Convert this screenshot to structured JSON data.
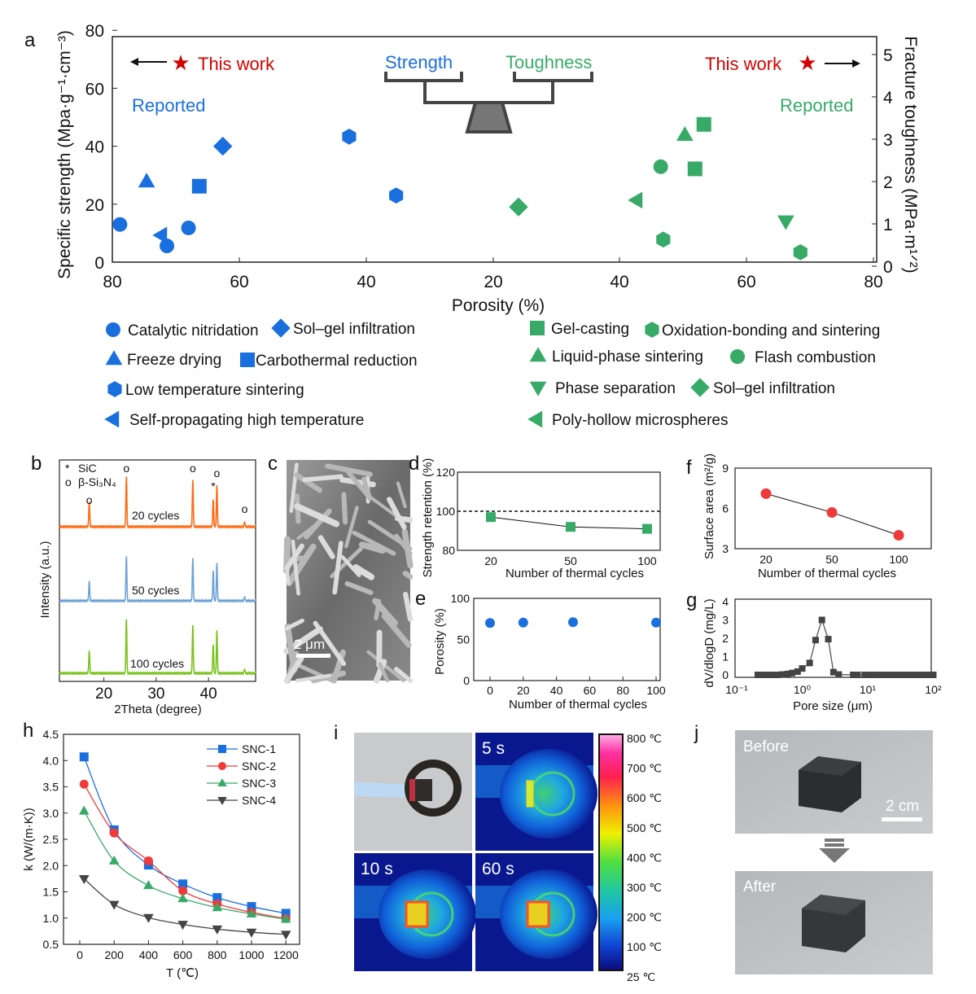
{
  "panel_labels": {
    "a": "a",
    "b": "b",
    "c": "c",
    "d": "d",
    "e": "e",
    "f": "f",
    "g": "g",
    "h": "h",
    "i": "i",
    "j": "j"
  },
  "colors": {
    "blue": "#1a6fdf",
    "green": "#38aa68",
    "red": "#d40000",
    "orange": "#ff6a13",
    "lightblue": "#6fa3d6",
    "lime": "#7ac41e",
    "gray": "#444444"
  },
  "chart_data": [
    {
      "id": "a",
      "type": "scatter",
      "xlabel": "Porosity (%)",
      "ylabel_left": "Specific strength (Mpa·g⁻¹·cm⁻³)",
      "ylabel_right": "Fracture toughness (MPa·m¹ᐟ²)",
      "xticks_left": [
        "80",
        "60",
        "40",
        "20"
      ],
      "xticks_right": [
        "40",
        "60",
        "80"
      ],
      "yticks_left": [
        "0",
        "20",
        "40",
        "60",
        "80"
      ],
      "yticks_right": [
        "0",
        "1",
        "2",
        "3",
        "4",
        "5"
      ],
      "ylim_left": [
        0,
        80
      ],
      "ylim_right": [
        0,
        5.5
      ],
      "annotations": {
        "this_work": "This work",
        "reported": "Reported",
        "strength": "Strength",
        "toughness": "Toughness"
      },
      "strength_points": [
        {
          "shape": "circle",
          "method": "Catalytic nitridation",
          "porosity": 78.8,
          "value": 13
        },
        {
          "shape": "circle",
          "method": "Catalytic nitridation",
          "porosity": 71.4,
          "value": 5.6
        },
        {
          "shape": "circle",
          "method": "Catalytic nitridation",
          "porosity": 68.0,
          "value": 11.8
        },
        {
          "shape": "triangle-up",
          "method": "Freeze drying",
          "porosity": 74.6,
          "value": 27.8
        },
        {
          "shape": "triangle-left",
          "method": "Self-propagating high temperature",
          "porosity": 72.3,
          "value": 9.3
        },
        {
          "shape": "square",
          "method": "Carbothermal reduction",
          "porosity": 66.3,
          "value": 26.2
        },
        {
          "shape": "diamond",
          "method": "Sol–gel infiltration",
          "porosity": 62.6,
          "value": 40
        },
        {
          "shape": "hexagon",
          "method": "Low temperature sintering",
          "porosity": 42.7,
          "value": 43.3
        },
        {
          "shape": "hexagon",
          "method": "Low temperature sintering",
          "porosity": 35.3,
          "value": 23
        }
      ],
      "toughness_points": [
        {
          "shape": "diamond",
          "method": "Sol–gel infiltration",
          "porosity": 24.1,
          "value": 1.4
        },
        {
          "shape": "triangle-left",
          "method": "Poly-hollow microspheres",
          "porosity": 42.7,
          "value": 1.56
        },
        {
          "shape": "circle",
          "method": "Flash combustion",
          "porosity": 46.5,
          "value": 2.35
        },
        {
          "shape": "hexagon",
          "method": "Oxidation-bonding and sintering",
          "porosity": 46.9,
          "value": 0.63
        },
        {
          "shape": "triangle-up",
          "method": "Liquid-phase sintering",
          "porosity": 50.3,
          "value": 3.1
        },
        {
          "shape": "square",
          "method": "Gel-casting",
          "porosity": 53.3,
          "value": 3.35
        },
        {
          "shape": "square",
          "method": "Gel-casting",
          "porosity": 51.9,
          "value": 2.3
        },
        {
          "shape": "triangle-down",
          "method": "Phase separation",
          "porosity": 66.2,
          "value": 1.06
        },
        {
          "shape": "hexagon",
          "method": "Oxidation-bonding and sintering",
          "porosity": 68.5,
          "value": 0.33
        }
      ],
      "legend_strength": [
        {
          "shape": "circle",
          "label": "Catalytic nitridation"
        },
        {
          "shape": "diamond",
          "label": "Sol–gel infiltration"
        },
        {
          "shape": "triangle-up",
          "label": "Freeze drying"
        },
        {
          "shape": "square",
          "label": "Carbothermal reduction"
        },
        {
          "shape": "hexagon",
          "label": "Low temperature sintering"
        },
        {
          "shape": "triangle-left",
          "label": "Self-propagating high temperature"
        }
      ],
      "legend_toughness": [
        {
          "shape": "square",
          "label": "Gel-casting"
        },
        {
          "shape": "hexagon",
          "label": "Oxidation-bonding and sintering"
        },
        {
          "shape": "triangle-up",
          "label": "Liquid-phase sintering"
        },
        {
          "shape": "circle",
          "label": "Flash combustion"
        },
        {
          "shape": "triangle-down",
          "label": "Phase separation"
        },
        {
          "shape": "diamond",
          "label": "Sol–gel infiltration"
        },
        {
          "shape": "triangle-left",
          "label": "Poly-hollow microspheres"
        }
      ]
    },
    {
      "id": "b",
      "type": "line",
      "xlabel": "2Theta (degree)",
      "ylabel": "Intensity (a.u.)",
      "xticks": [
        "20",
        "30",
        "40"
      ],
      "xlim": [
        11.5,
        49
      ],
      "legend": [
        {
          "symbol": "*",
          "label": "SiC"
        },
        {
          "symbol": "o",
          "label": "β-Si₃N₄"
        }
      ],
      "series": [
        {
          "name": "20 cycles",
          "peaks": [
            [
              17.2,
              35
            ],
            [
              24.3,
              72
            ],
            [
              37.0,
              68
            ],
            [
              40.9,
              40
            ],
            [
              41.6,
              60
            ],
            [
              46.9,
              7
            ]
          ]
        },
        {
          "name": "50 cycles",
          "peaks": [
            [
              17.2,
              28
            ],
            [
              24.3,
              64
            ],
            [
              37.0,
              62
            ],
            [
              40.9,
              44
            ],
            [
              41.6,
              55
            ],
            [
              46.9,
              6
            ]
          ]
        },
        {
          "name": "100 cycles",
          "peaks": [
            [
              17.2,
              32
            ],
            [
              24.3,
              78
            ],
            [
              37.0,
              70
            ],
            [
              40.9,
              42
            ],
            [
              41.6,
              62
            ],
            [
              46.9,
              6
            ]
          ]
        }
      ],
      "peak_markers": [
        {
          "two_theta": 17.2,
          "symbol": "o"
        },
        {
          "two_theta": 24.3,
          "symbol": "o"
        },
        {
          "two_theta": 37.0,
          "symbol": "o"
        },
        {
          "two_theta": 40.9,
          "symbol": "*"
        },
        {
          "two_theta": 41.6,
          "symbol": "o"
        },
        {
          "two_theta": 46.9,
          "symbol": "o"
        }
      ]
    },
    {
      "id": "d",
      "type": "line",
      "xlabel": "Number of thermal cycles",
      "ylabel": "Strength retention (%)",
      "categories": [
        "20",
        "50",
        "100"
      ],
      "values": [
        97,
        92,
        91
      ],
      "yticks": [
        "80",
        "100",
        "120"
      ],
      "ylim": [
        80,
        120
      ],
      "reference_line": 100
    },
    {
      "id": "e",
      "type": "scatter",
      "xlabel": "Number of thermal cycles",
      "ylabel": "Porosity (%)",
      "x": [
        0,
        20,
        50,
        100
      ],
      "y": [
        70,
        70.5,
        71,
        70.5
      ],
      "xticks": [
        "0",
        "20",
        "40",
        "60",
        "80",
        "100"
      ],
      "yticks": [
        "0",
        "50",
        "100"
      ],
      "xlim": [
        -5,
        105
      ],
      "ylim": [
        0,
        100
      ]
    },
    {
      "id": "f",
      "type": "line",
      "xlabel": "Number of thermal cycles",
      "ylabel": "Surface area (m²/g)",
      "categories": [
        "20",
        "50",
        "100"
      ],
      "values": [
        7.1,
        5.7,
        4.0
      ],
      "yticks": [
        "3",
        "6",
        "9"
      ],
      "ylim": [
        3,
        9
      ]
    },
    {
      "id": "g",
      "type": "line",
      "xlabel": "Pore size (μm)",
      "ylabel": "dV/dlogD (mg/L)",
      "xscale": "log",
      "xticks": [
        "10⁻¹",
        "10⁰",
        "10¹",
        "10²"
      ],
      "yticks": [
        "0",
        "1",
        "2",
        "3",
        "4"
      ],
      "xlim": [
        0.1,
        100
      ],
      "ylim": [
        -0.3,
        4
      ],
      "x": [
        0.21,
        0.25,
        0.3,
        0.35,
        0.42,
        0.5,
        0.6,
        0.7,
        0.85,
        1.0,
        1.3,
        1.6,
        2.0,
        2.5,
        3.0,
        3.6,
        6,
        7,
        9,
        10,
        12,
        15,
        18,
        22,
        27,
        33,
        40,
        48,
        58,
        70,
        85,
        100
      ],
      "y": [
        0,
        0,
        0,
        0,
        0,
        0.02,
        0.05,
        0.1,
        0.18,
        0.35,
        0.65,
        1.9,
        3.0,
        1.95,
        0.15,
        0.02,
        0,
        0,
        0,
        0,
        0,
        0,
        0,
        0,
        0,
        0,
        0,
        0,
        0,
        0,
        0,
        0
      ]
    },
    {
      "id": "h",
      "type": "line",
      "xlabel": "T (℃)",
      "ylabel": "k (W/(m·K))",
      "x": [
        25,
        200,
        400,
        600,
        800,
        1000,
        1200
      ],
      "xticks": [
        "0",
        "200",
        "400",
        "600",
        "800",
        "1000",
        "1200"
      ],
      "yticks": [
        "0.5",
        "1.0",
        "1.5",
        "2.0",
        "2.5",
        "3.0",
        "3.5",
        "4.0",
        "4.5"
      ],
      "xlim": [
        -100,
        1280
      ],
      "ylim": [
        0.5,
        4.5
      ],
      "legend_position": "top-right",
      "series": [
        {
          "name": "SNC-1",
          "marker": "square",
          "color": "#1a6fdf",
          "values": [
            4.07,
            2.68,
            2.01,
            1.65,
            1.39,
            1.22,
            1.09
          ]
        },
        {
          "name": "SNC-2",
          "marker": "circle",
          "color": "#ef3a3a",
          "values": [
            3.55,
            2.62,
            2.09,
            1.52,
            1.27,
            1.11,
            0.99
          ]
        },
        {
          "name": "SNC-3",
          "marker": "triangle-up",
          "color": "#38aa68",
          "values": [
            3.04,
            2.09,
            1.62,
            1.37,
            1.2,
            1.08,
            0.98
          ]
        },
        {
          "name": "SNC-4",
          "marker": "triangle-down",
          "color": "#444444",
          "values": [
            1.75,
            1.26,
            1.01,
            0.88,
            0.79,
            0.73,
            0.69
          ]
        }
      ]
    }
  ],
  "panel_c": {
    "scale_bar": "2 μm"
  },
  "panel_i": {
    "frames": [
      "5 s",
      "10 s",
      "60 s"
    ],
    "colorbar_labels": [
      "800 ℃",
      "700 ℃",
      "600 ℃",
      "500 ℃",
      "400 ℃",
      "300 ℃",
      "200 ℃",
      "100 ℃",
      "25 ℃"
    ]
  },
  "panel_j": {
    "before": "Before",
    "after": "After",
    "scale_bar": "2 cm"
  }
}
